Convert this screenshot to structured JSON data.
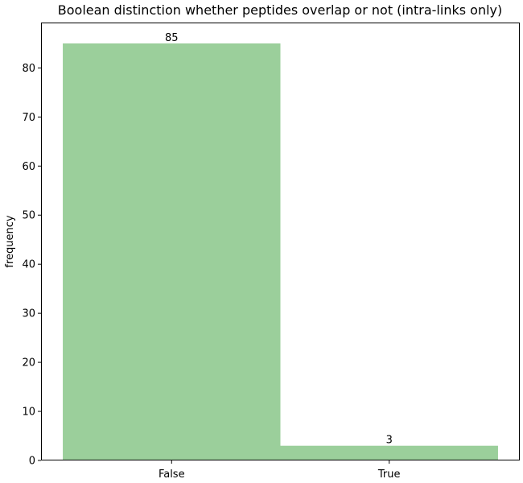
{
  "chart_data": {
    "type": "bar",
    "title": "Boolean distinction whether peptides overlap or not (intra-links only)",
    "xlabel": "",
    "ylabel": "frequency",
    "categories": [
      "False",
      "True"
    ],
    "values": [
      85,
      3
    ],
    "data_labels": [
      "85",
      "3"
    ],
    "ylim": [
      0,
      89.25
    ],
    "yticks": [
      0,
      10,
      20,
      30,
      40,
      50,
      60,
      70,
      80
    ],
    "bar_color": "#9bcf9b",
    "grid": false,
    "legend": "none"
  }
}
